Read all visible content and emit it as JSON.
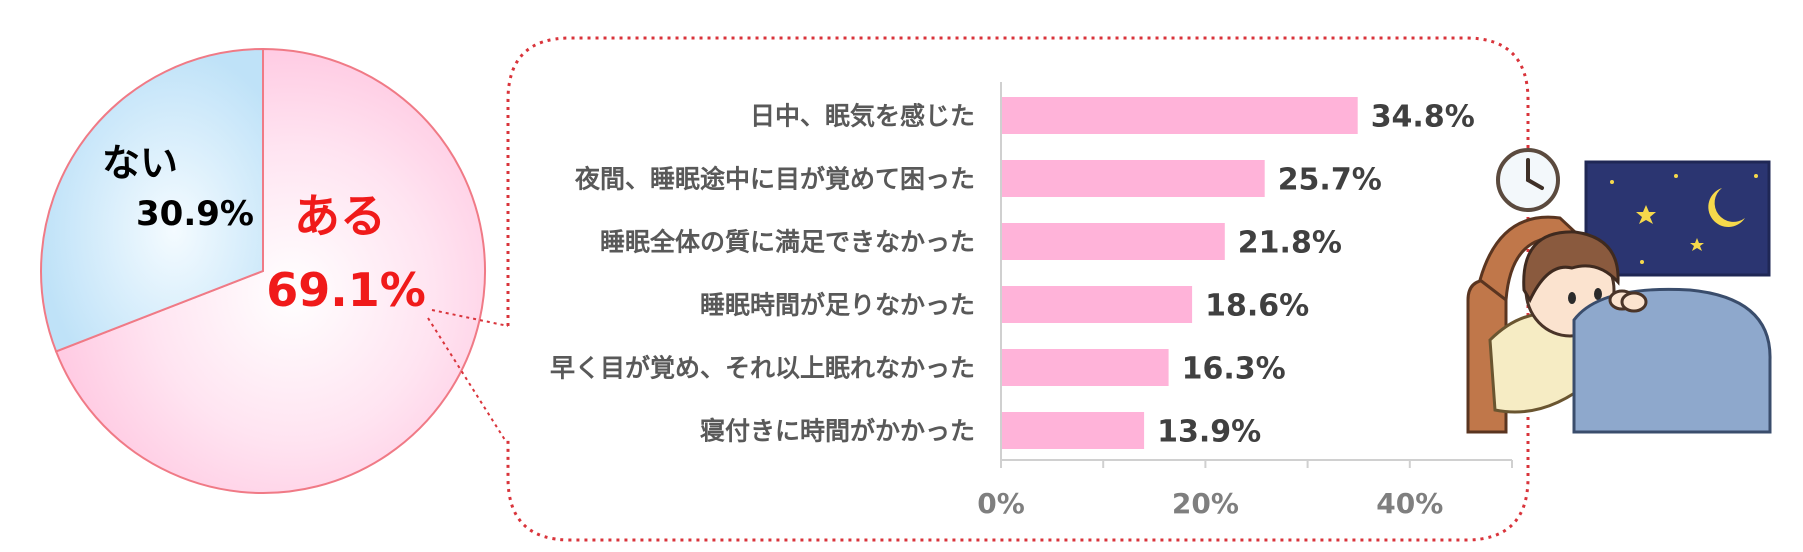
{
  "chart_data": [
    {
      "type": "pie",
      "slices": [
        {
          "label": "ある",
          "value": 69.1,
          "value_label": "69.1%",
          "color": "#ffcfe6",
          "label_color": "#f01a1a"
        },
        {
          "label": "ない",
          "value": 30.9,
          "value_label": "30.9%",
          "color": "#cfe9fb",
          "label_color": "#000000"
        }
      ],
      "border_color": "#f07a86"
    },
    {
      "type": "bar",
      "orientation": "horizontal",
      "categories": [
        "日中、眠気を感じた",
        "夜間、睡眠途中に目が覚めて困った",
        "睡眠全体の質に満足できなかった",
        "睡眠時間が足りなかった",
        "早く目が覚め、それ以上眠れなかった",
        "寝付きに時間がかかった"
      ],
      "values": [
        34.8,
        25.7,
        21.8,
        18.6,
        16.3,
        13.9
      ],
      "value_labels": [
        "34.8%",
        "25.7%",
        "21.8%",
        "18.6%",
        "16.3%",
        "13.9%"
      ],
      "xlim": [
        0,
        50
      ],
      "xticks": [
        0,
        20,
        40
      ],
      "xtick_labels": [
        "0%",
        "20%",
        "40%"
      ],
      "bar_color": "#ffb3d9",
      "grid": false
    }
  ],
  "colors": {
    "callout_border": "#d9343b",
    "axis": "#d0d0d0"
  },
  "illustration": {
    "icons": [
      "clock-icon",
      "night-window",
      "moon-icon",
      "star-icon",
      "sleepless-child-illustration"
    ]
  }
}
